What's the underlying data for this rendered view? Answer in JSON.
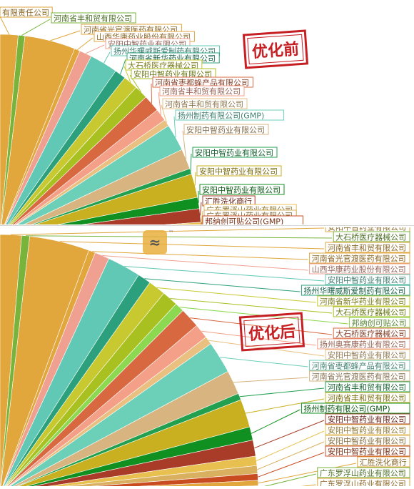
{
  "top_panel": {
    "stamp_text": "优化前",
    "colors": [
      "#e1a63c",
      "#78b43c",
      "#e1a63c",
      "#e1a63c",
      "#f0a090",
      "#60c8b4",
      "#2ca07c",
      "#c8c830",
      "#a8c020",
      "#d86840",
      "#f4a088",
      "#e9c080",
      "#6ccfb8",
      "#d8b480",
      "#22a050",
      "#c8b020",
      "#109020",
      "#a83c28",
      "#e8c050",
      "#d8b060",
      "#c84c20"
    ]
  },
  "bottom_panel": {
    "stamp_text": "优化后",
    "watermark_tm": "™",
    "colors": [
      "#e1a63c",
      "#78b43c",
      "#e1a63c",
      "#e1a63c",
      "#f0a090",
      "#60c8b4",
      "#2ca07c",
      "#c8c830",
      "#a8c020",
      "#8cd850",
      "#d86840",
      "#f4a088",
      "#e9c080",
      "#6ccfb8",
      "#d8b480",
      "#22a050",
      "#c8b020",
      "#109020",
      "#a83c28",
      "#e8c050",
      "#d8b060",
      "#c84c20"
    ]
  },
  "chart_data": [
    {
      "type": "pie",
      "title": "优化前",
      "labels": [
        "有限责任公司",
        "河南省丰和贸有限公司",
        "河南省光官渡医药有限公司",
        "山西华康药业股份有限公司",
        "安阳中智药业有限公司",
        "扬州华曙威斯爱制药有限公司",
        "河南省新华药业有限公司",
        "大石桥医疗器械公司",
        "安阳中智药业有限公司",
        "河南省枣都蜂产品有限公司",
        "河南省丰和贸有限公司",
        "河南省丰和贸有限公司",
        "扬州制药有限公司(GMP)",
        "安阳中智药业有限公司",
        "安阳中智药业有限公司",
        "安阳中智药业有限公司",
        "安阳中智药业有限公司",
        "汇胜洗化商行",
        "广东罗浮山药业有限公司",
        "广东罗浮山药业有限公司",
        "邦纳创可贴公司(GMP)"
      ],
      "values": [
        3.2,
        1.2,
        9.0,
        1.0,
        2.2,
        5.0,
        2.0,
        2.6,
        2.4,
        3.0,
        2.2,
        1.2,
        4.8,
        3.6,
        1.0,
        4.2,
        2.0,
        2.4,
        1.0,
        0.8,
        0.6
      ]
    },
    {
      "type": "pie",
      "title": "优化后",
      "labels": [
        "安阳中智药业有限公司",
        "大石桥医疗器械公司",
        "河南省丰和贸有限公司",
        "河南省光官渡医药有限公司",
        "山西华康药业股份有限公司",
        "安阳中智药业有限公司",
        "扬州华曙威斯爱制药有限公司",
        "河南省新华药业有限公司",
        "大石桥医疗器械公司",
        "邦纳创可贴公司",
        "大石桥医疗器械公司",
        "扬州奥赛康药业有限公司",
        "安阳中智药业有限公司",
        "河南省枣都蜂产品有限公司",
        "河南省光官渡医药有限公司",
        "河南省丰和贸有限公司",
        "河南省丰和贸有限公司",
        "扬州制药有限公司(GMP)",
        "安阳中智药业有限公司",
        "安阳中智药业有限公司",
        "安阳中智药业有限公司",
        "安阳中智药业有限公司",
        "汇胜洗化商行",
        "广东罗浮山药业有限公司",
        "广东罗浮山药业有限公司"
      ],
      "values": [
        3.2,
        1.2,
        9.0,
        1.0,
        2.2,
        5.0,
        2.0,
        2.6,
        2.4,
        1.4,
        3.0,
        2.2,
        1.2,
        4.8,
        3.6,
        1.0,
        4.2,
        2.0,
        2.4,
        1.4,
        1.2,
        1.0,
        0.8,
        0.6,
        0.5
      ]
    }
  ]
}
